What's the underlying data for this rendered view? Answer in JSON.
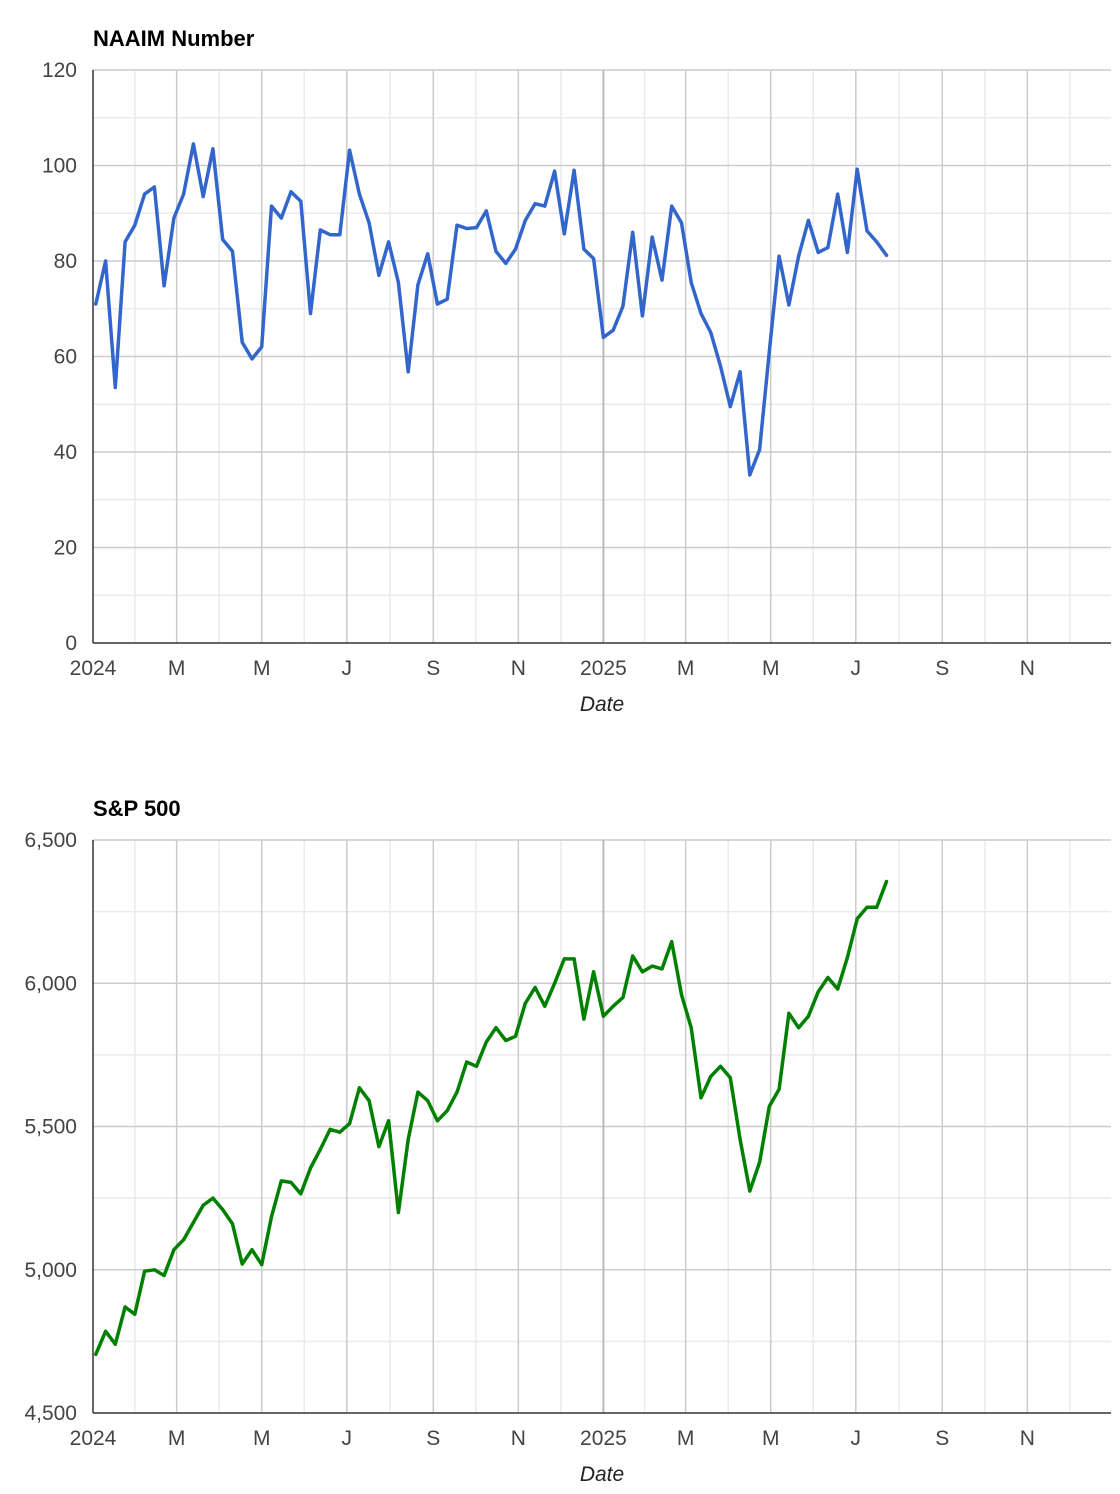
{
  "chart_data": [
    {
      "type": "line",
      "title": "NAAIM Number",
      "xlabel": "Date",
      "ylabel": "",
      "ylim": [
        0,
        120
      ],
      "yticks": [
        0,
        20,
        40,
        60,
        80,
        100,
        120
      ],
      "yticks_text": [
        "0",
        "20",
        "40",
        "60",
        "80",
        "100",
        "120"
      ],
      "x_start": "2024-01-01",
      "x_end": "2025-12-31",
      "xticks": [
        {
          "date": "2024-01-01",
          "label": "2024"
        },
        {
          "date": "2024-03-01",
          "label": "M"
        },
        {
          "date": "2024-05-01",
          "label": "M"
        },
        {
          "date": "2024-07-01",
          "label": "J"
        },
        {
          "date": "2024-09-01",
          "label": "S"
        },
        {
          "date": "2024-11-01",
          "label": "N"
        },
        {
          "date": "2025-01-01",
          "label": "2025"
        },
        {
          "date": "2025-03-01",
          "label": "M"
        },
        {
          "date": "2025-05-01",
          "label": "M"
        },
        {
          "date": "2025-07-01",
          "label": "J"
        },
        {
          "date": "2025-09-01",
          "label": "S"
        },
        {
          "date": "2025-11-01",
          "label": "N"
        }
      ],
      "grid": true,
      "color": "#3366cc",
      "series": [
        {
          "name": "",
          "points": [
            [
              "2024-01-03",
              71
            ],
            [
              "2024-01-10",
              80
            ],
            [
              "2024-01-17",
              53.5
            ],
            [
              "2024-01-24",
              84
            ],
            [
              "2024-01-31",
              87.5
            ],
            [
              "2024-02-07",
              94
            ],
            [
              "2024-02-14",
              95.5
            ],
            [
              "2024-02-21",
              74.8
            ],
            [
              "2024-02-28",
              89
            ],
            [
              "2024-03-06",
              94
            ],
            [
              "2024-03-13",
              104.5
            ],
            [
              "2024-03-20",
              93.5
            ],
            [
              "2024-03-27",
              103.5
            ],
            [
              "2024-04-03",
              84.5
            ],
            [
              "2024-04-10",
              82
            ],
            [
              "2024-04-17",
              63
            ],
            [
              "2024-04-24",
              59.5
            ],
            [
              "2024-05-01",
              62
            ],
            [
              "2024-05-08",
              91.5
            ],
            [
              "2024-05-15",
              89
            ],
            [
              "2024-05-22",
              94.5
            ],
            [
              "2024-05-29",
              92.5
            ],
            [
              "2024-06-05",
              69
            ],
            [
              "2024-06-12",
              86.5
            ],
            [
              "2024-06-19",
              85.5
            ],
            [
              "2024-06-26",
              85.5
            ],
            [
              "2024-07-03",
              103.2
            ],
            [
              "2024-07-10",
              94
            ],
            [
              "2024-07-17",
              88
            ],
            [
              "2024-07-24",
              77
            ],
            [
              "2024-07-31",
              84
            ],
            [
              "2024-08-07",
              75.5
            ],
            [
              "2024-08-14",
              56.8
            ],
            [
              "2024-08-21",
              75
            ],
            [
              "2024-08-28",
              81.5
            ],
            [
              "2024-09-04",
              71
            ],
            [
              "2024-09-11",
              72
            ],
            [
              "2024-09-18",
              87.5
            ],
            [
              "2024-09-25",
              86.8
            ],
            [
              "2024-10-02",
              87
            ],
            [
              "2024-10-09",
              90.5
            ],
            [
              "2024-10-16",
              82
            ],
            [
              "2024-10-23",
              79.5
            ],
            [
              "2024-10-30",
              82.5
            ],
            [
              "2024-11-06",
              88.5
            ],
            [
              "2024-11-13",
              92
            ],
            [
              "2024-11-20",
              91.5
            ],
            [
              "2024-11-27",
              98.8
            ],
            [
              "2024-12-04",
              85.7
            ],
            [
              "2024-12-11",
              99
            ],
            [
              "2024-12-18",
              82.5
            ],
            [
              "2024-12-25",
              80.5
            ],
            [
              "2025-01-01",
              64
            ],
            [
              "2025-01-08",
              65.5
            ],
            [
              "2025-01-15",
              70.5
            ],
            [
              "2025-01-22",
              86
            ],
            [
              "2025-01-29",
              68.5
            ],
            [
              "2025-02-05",
              85
            ],
            [
              "2025-02-12",
              76
            ],
            [
              "2025-02-19",
              91.5
            ],
            [
              "2025-02-26",
              88
            ],
            [
              "2025-03-05",
              75.5
            ],
            [
              "2025-03-12",
              69
            ],
            [
              "2025-03-19",
              65
            ],
            [
              "2025-03-26",
              58
            ],
            [
              "2025-04-02",
              49.5
            ],
            [
              "2025-04-09",
              56.8
            ],
            [
              "2025-04-16",
              35.2
            ],
            [
              "2025-04-23",
              40.5
            ],
            [
              "2025-04-30",
              61
            ],
            [
              "2025-05-07",
              81
            ],
            [
              "2025-05-14",
              70.8
            ],
            [
              "2025-05-21",
              81
            ],
            [
              "2025-05-28",
              88.5
            ],
            [
              "2025-06-04",
              81.8
            ],
            [
              "2025-06-11",
              82.8
            ],
            [
              "2025-06-18",
              94
            ],
            [
              "2025-06-25",
              81.8
            ],
            [
              "2025-07-02",
              99.2
            ],
            [
              "2025-07-09",
              86.3
            ],
            [
              "2025-07-16",
              84
            ],
            [
              "2025-07-23",
              81.2
            ]
          ]
        }
      ]
    },
    {
      "type": "line",
      "title": "S&P 500",
      "xlabel": "Date",
      "ylabel": "",
      "ylim": [
        4500,
        6500
      ],
      "yticks": [
        4500,
        5000,
        5500,
        6000,
        6500
      ],
      "yticks_text": [
        "4,500",
        "5,000",
        "5,500",
        "6,000",
        "6,500"
      ],
      "x_start": "2024-01-01",
      "x_end": "2025-12-31",
      "xticks": [
        {
          "date": "2024-01-01",
          "label": "2024"
        },
        {
          "date": "2024-03-01",
          "label": "M"
        },
        {
          "date": "2024-05-01",
          "label": "M"
        },
        {
          "date": "2024-07-01",
          "label": "J"
        },
        {
          "date": "2024-09-01",
          "label": "S"
        },
        {
          "date": "2024-11-01",
          "label": "N"
        },
        {
          "date": "2025-01-01",
          "label": "2025"
        },
        {
          "date": "2025-03-01",
          "label": "M"
        },
        {
          "date": "2025-05-01",
          "label": "M"
        },
        {
          "date": "2025-07-01",
          "label": "J"
        },
        {
          "date": "2025-09-01",
          "label": "S"
        },
        {
          "date": "2025-11-01",
          "label": "N"
        }
      ],
      "grid": true,
      "color": "#008000",
      "series": [
        {
          "name": "",
          "points": [
            [
              "2024-01-03",
              4705
            ],
            [
              "2024-01-10",
              4785
            ],
            [
              "2024-01-17",
              4740
            ],
            [
              "2024-01-24",
              4870
            ],
            [
              "2024-01-31",
              4845
            ],
            [
              "2024-02-07",
              4995
            ],
            [
              "2024-02-14",
              5000
            ],
            [
              "2024-02-21",
              4980
            ],
            [
              "2024-02-28",
              5070
            ],
            [
              "2024-03-06",
              5105
            ],
            [
              "2024-03-13",
              5165
            ],
            [
              "2024-03-20",
              5225
            ],
            [
              "2024-03-27",
              5250
            ],
            [
              "2024-04-03",
              5210
            ],
            [
              "2024-04-10",
              5160
            ],
            [
              "2024-04-17",
              5020
            ],
            [
              "2024-04-24",
              5070
            ],
            [
              "2024-05-01",
              5018
            ],
            [
              "2024-05-08",
              5185
            ],
            [
              "2024-05-15",
              5310
            ],
            [
              "2024-05-22",
              5305
            ],
            [
              "2024-05-29",
              5265
            ],
            [
              "2024-06-05",
              5355
            ],
            [
              "2024-06-12",
              5420
            ],
            [
              "2024-06-19",
              5490
            ],
            [
              "2024-06-26",
              5480
            ],
            [
              "2024-07-03",
              5510
            ],
            [
              "2024-07-10",
              5635
            ],
            [
              "2024-07-17",
              5590
            ],
            [
              "2024-07-24",
              5430
            ],
            [
              "2024-07-31",
              5520
            ],
            [
              "2024-08-07",
              5200
            ],
            [
              "2024-08-14",
              5455
            ],
            [
              "2024-08-21",
              5620
            ],
            [
              "2024-08-28",
              5590
            ],
            [
              "2024-09-04",
              5520
            ],
            [
              "2024-09-11",
              5555
            ],
            [
              "2024-09-18",
              5620
            ],
            [
              "2024-09-25",
              5725
            ],
            [
              "2024-10-02",
              5710
            ],
            [
              "2024-10-09",
              5795
            ],
            [
              "2024-10-16",
              5845
            ],
            [
              "2024-10-23",
              5800
            ],
            [
              "2024-10-30",
              5815
            ],
            [
              "2024-11-06",
              5930
            ],
            [
              "2024-11-13",
              5985
            ],
            [
              "2024-11-20",
              5920
            ],
            [
              "2024-11-27",
              6000
            ],
            [
              "2024-12-04",
              6085
            ],
            [
              "2024-12-11",
              6085
            ],
            [
              "2024-12-18",
              5875
            ],
            [
              "2024-12-25",
              6040
            ],
            [
              "2025-01-01",
              5885
            ],
            [
              "2025-01-08",
              5920
            ],
            [
              "2025-01-15",
              5950
            ],
            [
              "2025-01-22",
              6095
            ],
            [
              "2025-01-29",
              6040
            ],
            [
              "2025-02-05",
              6060
            ],
            [
              "2025-02-12",
              6050
            ],
            [
              "2025-02-19",
              6145
            ],
            [
              "2025-02-26",
              5960
            ],
            [
              "2025-03-05",
              5845
            ],
            [
              "2025-03-12",
              5600
            ],
            [
              "2025-03-19",
              5675
            ],
            [
              "2025-03-26",
              5710
            ],
            [
              "2025-04-02",
              5670
            ],
            [
              "2025-04-09",
              5455
            ],
            [
              "2025-04-16",
              5275
            ],
            [
              "2025-04-23",
              5375
            ],
            [
              "2025-04-30",
              5570
            ],
            [
              "2025-05-07",
              5630
            ],
            [
              "2025-05-14",
              5895
            ],
            [
              "2025-05-21",
              5845
            ],
            [
              "2025-05-28",
              5885
            ],
            [
              "2025-06-04",
              5970
            ],
            [
              "2025-06-11",
              6020
            ],
            [
              "2025-06-18",
              5980
            ],
            [
              "2025-06-25",
              6090
            ],
            [
              "2025-07-02",
              6225
            ],
            [
              "2025-07-09",
              6265
            ],
            [
              "2025-07-16",
              6265
            ],
            [
              "2025-07-23",
              6355
            ]
          ]
        }
      ]
    }
  ]
}
